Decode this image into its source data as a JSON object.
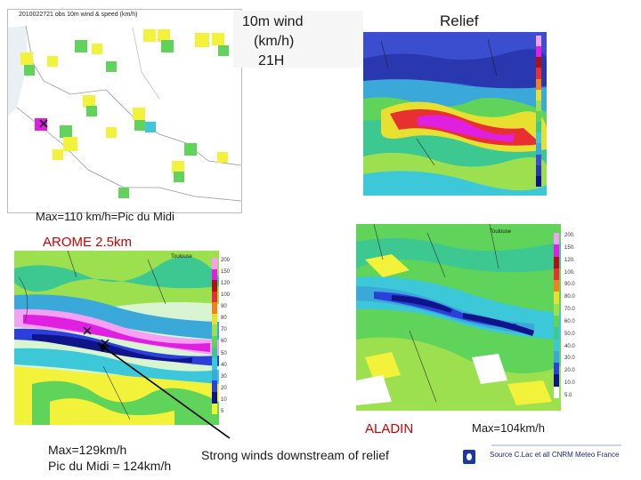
{
  "labels": {
    "wind_title_line1": "10m wind",
    "wind_title_line2": "(km/h)",
    "wind_title_line3": "21H",
    "relief": "Relief",
    "obs_header": "2010022721 obs 10m wind & speed (km/h)",
    "max_obs": "Max=110 km/h=Pic du Midi",
    "arome": "AROME 2.5km",
    "aladin": "ALADIN",
    "max_aladin": "Max=104km/h",
    "max_arome_line1": "Max=129km/h",
    "max_arome_line2": "Pic du Midi = 124km/h",
    "downstream": "Strong winds downstream of relief",
    "source": "Source C.Lac et all CNRM Meteo France",
    "toulouse": "Toulouse"
  },
  "legend_ticks": {
    "aladin": [
      "200.",
      "150.",
      "120.",
      "100.",
      "90.0",
      "80.0",
      "70.0",
      "60.0",
      "50.0",
      "40.0",
      "30.0",
      "20.0",
      "10.0",
      "5.0"
    ],
    "arome": [
      "200",
      "150",
      "120",
      "100",
      "90",
      "80",
      "70",
      "60",
      "50",
      "40",
      "30",
      "20",
      "10",
      "5"
    ]
  },
  "colors": {
    "accent_red": "#cc0000",
    "wind_yellow": "#f2f23a",
    "wind_green": "#5fd35a",
    "wind_cyan": "#3cc8d8",
    "wind_blue": "#2a40d8",
    "wind_navy": "#10148a",
    "wind_magenta": "#e020e0",
    "wind_pink": "#f4a0f4"
  }
}
